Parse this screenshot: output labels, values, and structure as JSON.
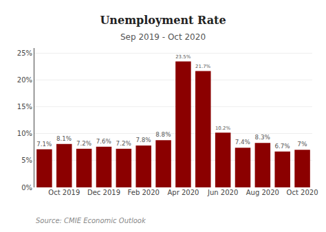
{
  "chart_data": {
    "type": "bar",
    "title": "Unemployment Rate",
    "subtitle": "Sep 2019 - Oct 2020",
    "annotations": [
      "Source: CMIE Economic Outlook"
    ],
    "categories": [
      null,
      "Oct 2019",
      null,
      "Dec 2019",
      null,
      "Feb 2020",
      null,
      "Apr 2020",
      null,
      "Jun 2020",
      null,
      "Aug 2020",
      null,
      "Oct 2020"
    ],
    "values": [
      7.1,
      8.1,
      7.2,
      7.6,
      7.2,
      7.8,
      8.8,
      23.5,
      21.7,
      10.2,
      7.4,
      8.3,
      6.7,
      7.0
    ],
    "value_labels": [
      "7.1%",
      "8.1%",
      "7.2%",
      "7.6%",
      "7.2%",
      "7.8%",
      "8.8%",
      "23.5%",
      "21.7%",
      "10.2%",
      "7.4%",
      "8.3%",
      "6.7%",
      "7%"
    ],
    "data_labels": true,
    "color": "#8B0000",
    "ylim": [
      0,
      26
    ],
    "yticks": [
      {
        "value": 0,
        "label": "0%"
      },
      {
        "value": 5,
        "label": "5%"
      },
      {
        "value": 10,
        "label": "10%"
      },
      {
        "value": 15,
        "label": "15%"
      },
      {
        "value": 20,
        "label": "20%"
      },
      {
        "value": 25,
        "label": "25%"
      }
    ],
    "grid": true
  }
}
